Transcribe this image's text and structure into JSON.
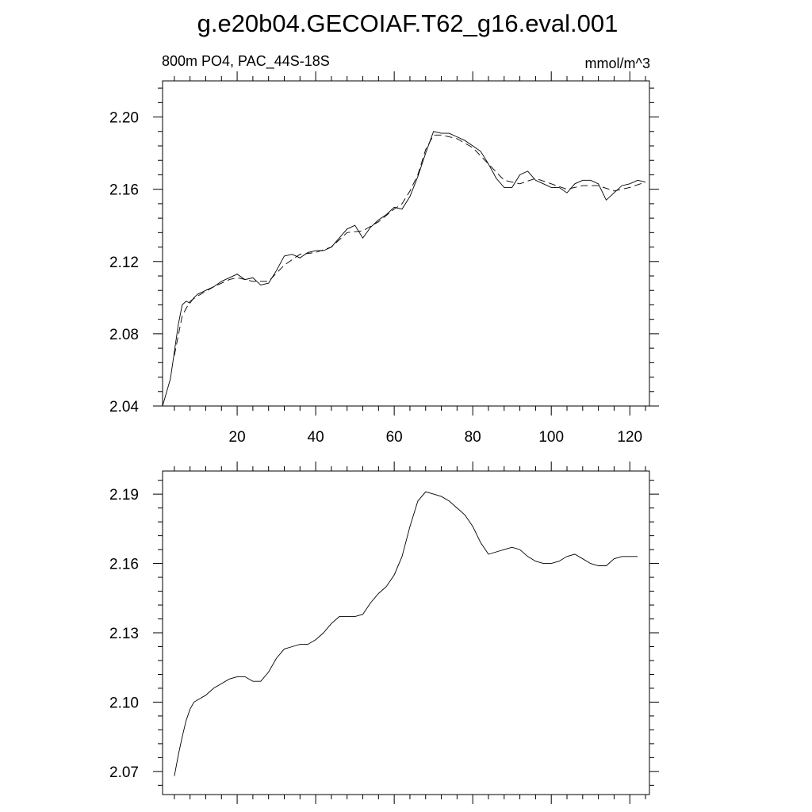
{
  "title": "g.e20b04.GECOIAF.T62_g16.eval.001",
  "chart_data": [
    {
      "type": "line",
      "left_label": "800m PO4, PAC_44S-18S",
      "right_label": "mmol/m^3",
      "xlim": [
        1,
        125
      ],
      "ylim": [
        2.04,
        2.22
      ],
      "x_ticks": [
        20,
        40,
        60,
        80,
        100,
        120
      ],
      "x_tick_labels": [
        "20",
        "40",
        "60",
        "80",
        "100",
        "120"
      ],
      "y_ticks": [
        2.04,
        2.08,
        2.12,
        2.16,
        2.2
      ],
      "y_tick_labels": [
        "2.04",
        "2.08",
        "2.12",
        "2.16",
        "2.20"
      ],
      "grid": false,
      "series": [
        {
          "style": "solid",
          "x": [
            1,
            3,
            4,
            5,
            6,
            7,
            8,
            9,
            10,
            12,
            14,
            16,
            18,
            20,
            22,
            24,
            26,
            28,
            30,
            32,
            34,
            36,
            38,
            40,
            42,
            44,
            46,
            48,
            50,
            52,
            54,
            56,
            58,
            60,
            62,
            64,
            66,
            68,
            70,
            72,
            74,
            76,
            78,
            80,
            82,
            84,
            86,
            88,
            90,
            92,
            94,
            96,
            98,
            100,
            102,
            104,
            106,
            108,
            110,
            112,
            114,
            116,
            118,
            120,
            122,
            124
          ],
          "y": [
            2.04,
            2.055,
            2.07,
            2.085,
            2.096,
            2.098,
            2.097,
            2.1,
            2.102,
            2.104,
            2.106,
            2.109,
            2.111,
            2.113,
            2.11,
            2.111,
            2.107,
            2.108,
            2.115,
            2.123,
            2.124,
            2.122,
            2.125,
            2.126,
            2.126,
            2.128,
            2.133,
            2.138,
            2.14,
            2.133,
            2.139,
            2.143,
            2.146,
            2.15,
            2.149,
            2.156,
            2.167,
            2.18,
            2.192,
            2.191,
            2.191,
            2.189,
            2.187,
            2.184,
            2.181,
            2.174,
            2.166,
            2.161,
            2.161,
            2.168,
            2.17,
            2.165,
            2.163,
            2.161,
            2.161,
            2.158,
            2.163,
            2.165,
            2.165,
            2.163,
            2.154,
            2.158,
            2.162,
            2.163,
            2.165,
            2.164
          ]
        },
        {
          "style": "dashed",
          "x": [
            4,
            6,
            8,
            10,
            14,
            18,
            20,
            24,
            28,
            32,
            36,
            40,
            44,
            48,
            52,
            56,
            60,
            62,
            64,
            66,
            68,
            70,
            72,
            76,
            80,
            84,
            88,
            92,
            96,
            100,
            104,
            108,
            112,
            116,
            120,
            124
          ],
          "y": [
            2.068,
            2.09,
            2.098,
            2.101,
            2.106,
            2.11,
            2.111,
            2.109,
            2.109,
            2.118,
            2.124,
            2.125,
            2.128,
            2.136,
            2.137,
            2.142,
            2.149,
            2.152,
            2.159,
            2.168,
            2.182,
            2.19,
            2.19,
            2.188,
            2.183,
            2.174,
            2.165,
            2.163,
            2.166,
            2.163,
            2.16,
            2.162,
            2.162,
            2.159,
            2.161,
            2.164
          ]
        }
      ]
    },
    {
      "type": "line",
      "xlim": [
        1,
        125
      ],
      "ylim": [
        2.06,
        2.2
      ],
      "x_ticks": [
        20,
        40,
        60,
        80,
        100,
        120
      ],
      "y_ticks": [
        2.07,
        2.1,
        2.13,
        2.16,
        2.19
      ],
      "y_tick_labels": [
        "2.07",
        "2.10",
        "2.13",
        "2.16",
        "2.19"
      ],
      "grid": false,
      "series": [
        {
          "style": "solid",
          "x": [
            4,
            5,
            6,
            7,
            8,
            9,
            10,
            12,
            14,
            16,
            18,
            20,
            22,
            24,
            26,
            28,
            30,
            32,
            34,
            36,
            38,
            40,
            42,
            44,
            46,
            48,
            50,
            52,
            54,
            56,
            58,
            60,
            62,
            64,
            66,
            68,
            70,
            72,
            74,
            76,
            78,
            80,
            82,
            84,
            86,
            88,
            90,
            92,
            94,
            96,
            98,
            100,
            102,
            104,
            106,
            108,
            110,
            112,
            114,
            116,
            118,
            120,
            122
          ],
          "y": [
            2.068,
            2.077,
            2.085,
            2.092,
            2.097,
            2.1,
            2.101,
            2.103,
            2.106,
            2.108,
            2.11,
            2.111,
            2.111,
            2.109,
            2.109,
            2.113,
            2.119,
            2.123,
            2.124,
            2.125,
            2.125,
            2.127,
            2.13,
            2.134,
            2.137,
            2.137,
            2.137,
            2.138,
            2.143,
            2.147,
            2.15,
            2.155,
            2.163,
            2.176,
            2.187,
            2.191,
            2.19,
            2.189,
            2.187,
            2.184,
            2.181,
            2.176,
            2.169,
            2.164,
            2.165,
            2.166,
            2.167,
            2.166,
            2.163,
            2.161,
            2.16,
            2.16,
            2.161,
            2.163,
            2.164,
            2.162,
            2.16,
            2.159,
            2.159,
            2.162,
            2.163,
            2.163,
            2.163
          ]
        }
      ]
    }
  ]
}
